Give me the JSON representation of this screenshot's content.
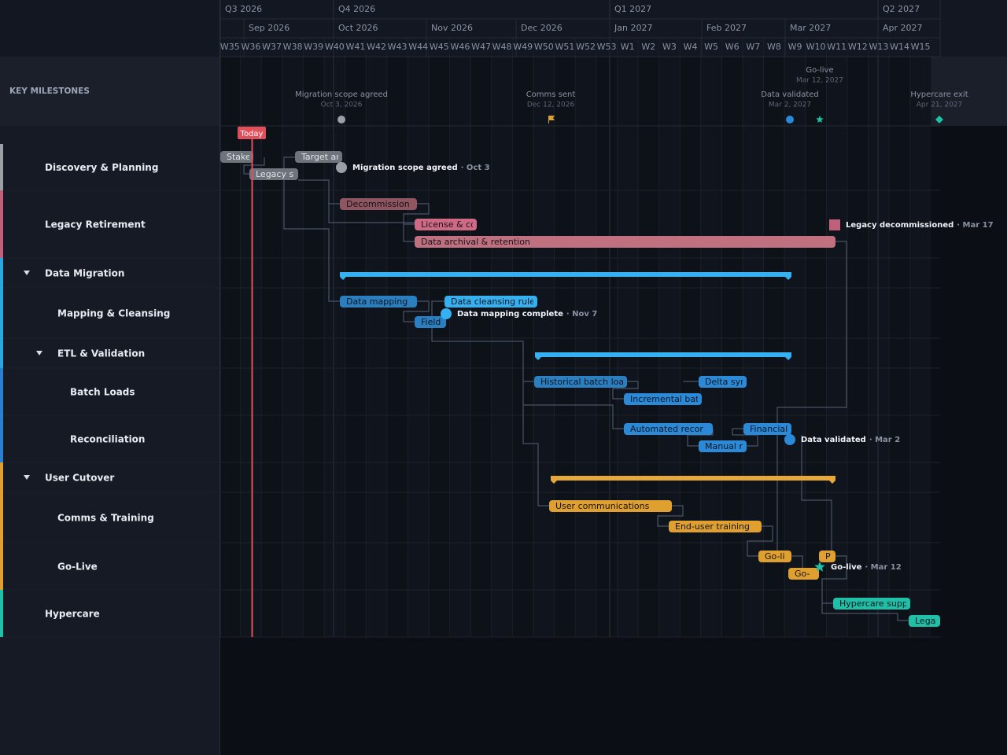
{
  "timeline": {
    "quarters": [
      "Q3 2026",
      "Q4 2026",
      "Q1 2027",
      "Q2 2027"
    ],
    "months": [
      "Sep 2026",
      "Oct 2026",
      "Nov 2026",
      "Dec 2026",
      "Jan 2027",
      "Feb 2027",
      "Mar 2027",
      "Apr 2027"
    ],
    "weeks": [
      "W35",
      "W36",
      "W37",
      "W38",
      "W39",
      "W40",
      "W41",
      "W42",
      "W43",
      "W44",
      "W45",
      "W46",
      "W47",
      "W48",
      "W49",
      "W50",
      "W51",
      "W52",
      "W53",
      "W1",
      "W2",
      "W3",
      "W4",
      "W5",
      "W6",
      "W7",
      "W8",
      "W9",
      "W10",
      "W11",
      "W12",
      "W13",
      "W14",
      "W15"
    ]
  },
  "milestone_band": {
    "title": "KEY MILESTONES",
    "milestones": [
      {
        "label": "Migration scope agreed",
        "date": "Oct 3, 2026"
      },
      {
        "label": "Comms sent",
        "date": "Dec 12, 2026"
      },
      {
        "label": "Data validated",
        "date": "Mar 2, 2027"
      },
      {
        "label": "Go-live",
        "date": "Mar 12, 2027"
      },
      {
        "label": "Hypercare exit",
        "date": "Apr 21, 2027"
      }
    ]
  },
  "today": "Today",
  "rows": [
    {
      "label": "Discovery & Planning"
    },
    {
      "label": "Legacy Retirement"
    },
    {
      "label": "Data Migration"
    },
    {
      "label": "Mapping & Cleansing"
    },
    {
      "label": "ETL & Validation"
    },
    {
      "label": "Batch Loads"
    },
    {
      "label": "Reconciliation"
    },
    {
      "label": "User Cutover"
    },
    {
      "label": "Comms & Training"
    },
    {
      "label": "Go-Live"
    },
    {
      "label": "Hypercare"
    }
  ],
  "tasks": [
    {
      "label": "Stake"
    },
    {
      "label": "Target ar"
    },
    {
      "label": "Legacy sy"
    },
    {
      "label": "Decommission p"
    },
    {
      "label": "License & coi"
    },
    {
      "label": "Data archival & retention"
    },
    {
      "label": "Data mapping"
    },
    {
      "label": "Data cleansing rules"
    },
    {
      "label": "Field"
    },
    {
      "label": "Historical batch load"
    },
    {
      "label": "Delta syn"
    },
    {
      "label": "Incremental batc"
    },
    {
      "label": "Automated recor"
    },
    {
      "label": "Financial"
    },
    {
      "label": "Manual r"
    },
    {
      "label": "User communications"
    },
    {
      "label": "End-user training"
    },
    {
      "label": "Go-li"
    },
    {
      "label": "P"
    },
    {
      "label": "Go-"
    },
    {
      "label": "Hypercare suppc"
    },
    {
      "label": "Legac"
    }
  ],
  "milestones": [
    {
      "name": "Migration scope agreed",
      "date": "· Oct 3"
    },
    {
      "name": "Legacy decommissioned",
      "date": "· Mar 17"
    },
    {
      "name": "Data mapping complete",
      "date": "· Nov 7"
    },
    {
      "name": "Data validated",
      "date": "· Mar 2"
    },
    {
      "name": "Go-live",
      "date": "· Mar 12"
    }
  ]
}
